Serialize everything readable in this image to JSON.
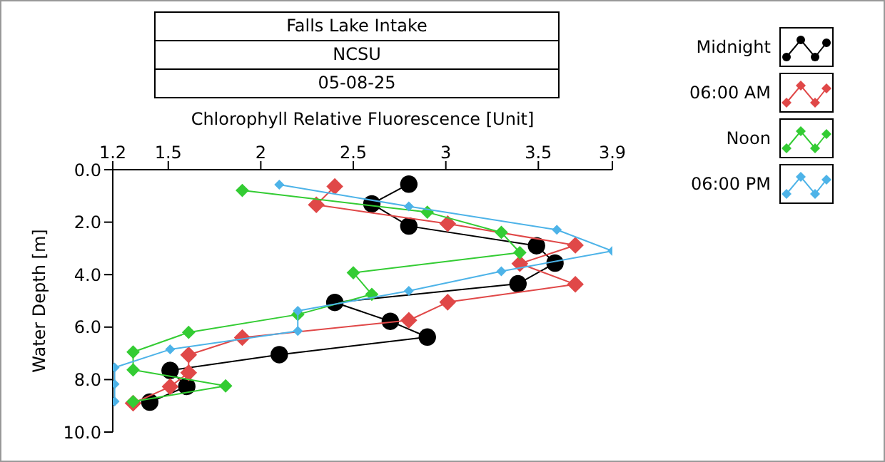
{
  "chart_data": {
    "type": "line",
    "title": "Falls Lake Intake",
    "subtitle": "NCSU",
    "annotations": [
      "05-08-25"
    ],
    "xlabel": "Chlorophyll Relative Fluorescence [Unit]",
    "ylabel": "Water Depth [m]",
    "xlim": [
      1.2,
      3.9
    ],
    "xticks": [
      1.2,
      1.5,
      2,
      2.5,
      3,
      3.5,
      3.9
    ],
    "ylim": [
      10,
      0
    ],
    "yticks": [
      {
        "value": 0,
        "label": "0.0"
      },
      {
        "value": 2,
        "label": "2.0"
      },
      {
        "value": 4,
        "label": "4.0"
      },
      {
        "value": 6,
        "label": "6.0"
      },
      {
        "value": 8,
        "label": "8.0"
      },
      {
        "value": 10,
        "label": "10.0"
      }
    ],
    "grid": false,
    "legend": "top right",
    "line_style": "solid",
    "series": [
      {
        "name": "Midnight",
        "color": "#000000",
        "marker": "circle",
        "x": [
          2.8,
          2.6,
          2.8,
          3.49,
          3.59,
          3.39,
          2.4,
          2.7,
          2.9,
          2.1,
          1.51,
          1.6,
          1.4
        ],
        "values": [
          0.55,
          1.3,
          2.15,
          2.9,
          3.56,
          4.35,
          5.06,
          5.78,
          6.38,
          7.05,
          7.65,
          8.26,
          8.86
        ]
      },
      {
        "name": "06:00 AM",
        "color": "#e04848",
        "marker": "diamond",
        "x": [
          2.4,
          2.3,
          3.01,
          3.7,
          3.4,
          3.7,
          3.01,
          2.8,
          1.9,
          1.61,
          1.61,
          1.51,
          1.31
        ],
        "values": [
          0.64,
          1.34,
          2.06,
          2.88,
          3.58,
          4.37,
          5.05,
          5.74,
          6.4,
          7.06,
          7.74,
          8.27,
          8.9
        ]
      },
      {
        "name": "Noon",
        "color": "#33cc33",
        "marker": "diamond",
        "x": [
          1.9,
          2.9,
          3.3,
          3.4,
          2.5,
          2.6,
          2.2,
          1.61,
          1.31,
          1.31,
          1.81,
          1.31
        ],
        "values": [
          0.79,
          1.62,
          2.39,
          3.16,
          3.93,
          4.75,
          5.52,
          6.2,
          6.95,
          7.63,
          8.24,
          8.84
        ]
      },
      {
        "name": "06:00 PM",
        "color": "#4db3e8",
        "marker": "diamond",
        "x": [
          2.1,
          2.8,
          3.6,
          3.9,
          3.3,
          2.8,
          2.2,
          2.2,
          1.51,
          1.21,
          1.21,
          1.21
        ],
        "values": [
          0.57,
          1.4,
          2.29,
          3.1,
          3.87,
          4.62,
          5.38,
          6.15,
          6.85,
          7.54,
          8.17,
          8.83
        ]
      }
    ]
  }
}
